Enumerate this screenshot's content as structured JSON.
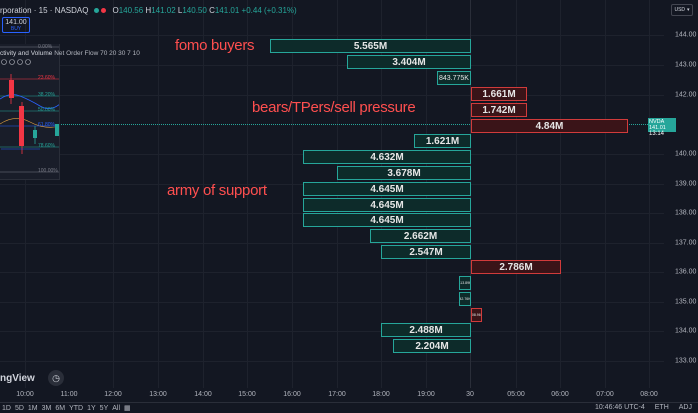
{
  "header": {
    "symbol_title": "rporation · 15 · NASDAQ",
    "ohlc": {
      "o_label": "O",
      "o": "140.56",
      "h_label": "H",
      "h": "141.02",
      "l_label": "L",
      "l": "140.50",
      "c_label": "C",
      "c": "141.01",
      "change": "+0.44 (+0.31%)"
    },
    "price_button": {
      "price": "141.00",
      "label": "BUY"
    },
    "currency": "USD"
  },
  "inset": {
    "label": "ctivity and Volume",
    "indicator": "Net Order Flow 70 20 30 7 10",
    "fib_levels": [
      "0.00%",
      "23.60%",
      "38.20%",
      "50.00%",
      "61.80%",
      "78.60%",
      "100.00%"
    ]
  },
  "annotations": {
    "fomo": "fomo buyers",
    "bears": "bears/TPers/sell pressure",
    "support": "army of support"
  },
  "volume_blocks": [
    {
      "label": "5.565M",
      "side": "buy",
      "price": 143.8
    },
    {
      "label": "3.404M",
      "side": "buy",
      "price": 143.2
    },
    {
      "label": "843.775K",
      "side": "buy",
      "price": 142.6
    },
    {
      "label": "1.661M",
      "side": "sell",
      "price": 142.0
    },
    {
      "label": "1.742M",
      "side": "sell",
      "price": 141.5
    },
    {
      "label": "4.84M",
      "side": "sell",
      "price": 141.0
    },
    {
      "label": "1.621M",
      "side": "buy",
      "price": 140.4
    },
    {
      "label": "4.632M",
      "side": "buy",
      "price": 139.9
    },
    {
      "label": "3.678M",
      "side": "buy",
      "price": 139.4
    },
    {
      "label": "4.645M",
      "side": "buy",
      "price": 138.9
    },
    {
      "label": "4.645M",
      "side": "buy",
      "price": 138.4
    },
    {
      "label": "4.645M",
      "side": "buy",
      "price": 137.9
    },
    {
      "label": "2.662M",
      "side": "buy",
      "price": 137.4
    },
    {
      "label": "2.547M",
      "side": "buy",
      "price": 136.9
    },
    {
      "label": "2.786M",
      "side": "sell",
      "price": 136.3
    },
    {
      "label": "113.89K",
      "side": "buy",
      "price": 135.7
    },
    {
      "label": "42.76K",
      "side": "buy",
      "price": 135.2
    },
    {
      "label": "108.96K",
      "side": "sell",
      "price": 134.7
    },
    {
      "label": "2.488M",
      "side": "buy",
      "price": 134.0
    },
    {
      "label": "2.204M",
      "side": "buy",
      "price": 133.5
    }
  ],
  "price_axis": [
    "144.00",
    "143.00",
    "142.00",
    "141.00",
    "140.00",
    "139.00",
    "138.00",
    "137.00",
    "136.00",
    "135.00",
    "134.00",
    "133.00"
  ],
  "current_price": {
    "symbol": "NVDA",
    "price": "141.01",
    "countdown": "13:14"
  },
  "time_axis": [
    "10:00",
    "11:00",
    "12:00",
    "13:00",
    "14:00",
    "15:00",
    "16:00",
    "17:00",
    "18:00",
    "19:00",
    "30",
    "05:00",
    "06:00",
    "07:00",
    "08:00"
  ],
  "footer": {
    "ranges": [
      "1D",
      "5D",
      "1M",
      "3M",
      "6M",
      "YTD",
      "1Y",
      "5Y",
      "All"
    ],
    "clock": "10:46:46 UTC-4",
    "session": "ETH",
    "adj": "ADJ"
  },
  "logo": "ngView",
  "colors": {
    "bg": "#131722",
    "buy": "#26a69a",
    "sell": "#d13b3b",
    "annotation": "#ff4f4f",
    "accent": "#2962ff"
  }
}
